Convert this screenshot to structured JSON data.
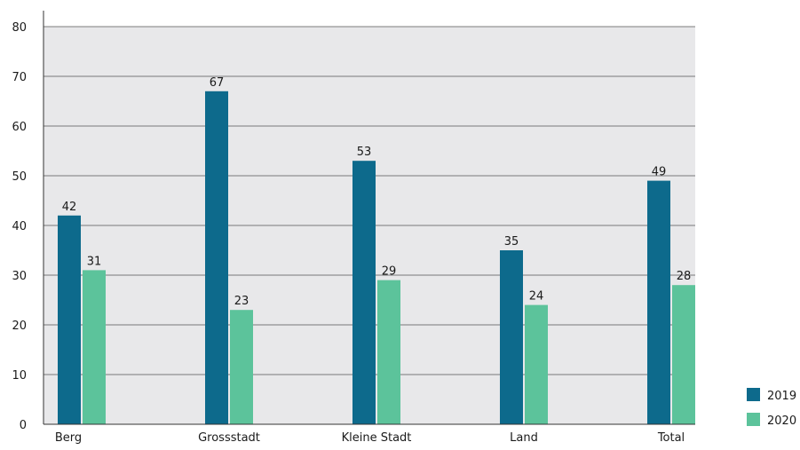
{
  "chart_data": {
    "type": "bar",
    "categories": [
      "Berg",
      "Grossstadt",
      "Kleine Stadt",
      "Land",
      "Total"
    ],
    "series": [
      {
        "name": "2019",
        "values": [
          42,
          67,
          53,
          35,
          49
        ],
        "color": "#0d6a8c"
      },
      {
        "name": "2020",
        "values": [
          31,
          23,
          29,
          24,
          28
        ],
        "color": "#5cc39b"
      }
    ],
    "title": "",
    "xlabel": "",
    "ylabel": "",
    "ylim": [
      0,
      80
    ],
    "yticks": [
      0,
      10,
      20,
      30,
      40,
      50,
      60,
      70,
      80
    ],
    "grid": true,
    "plot_background": "#e8e8ea",
    "legend_position": "bottom-right"
  }
}
